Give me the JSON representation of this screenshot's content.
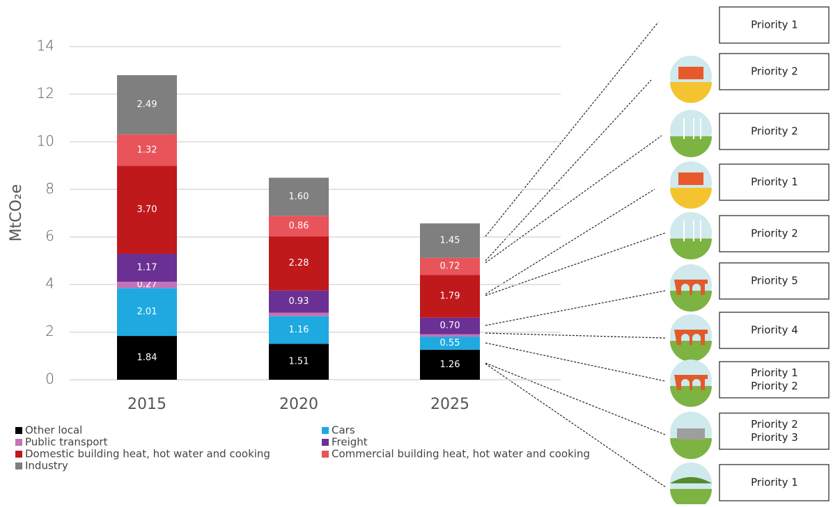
{
  "chart_data": {
    "type": "stacked_bar",
    "y_label": "MtCO₂e",
    "categories": [
      "2015",
      "2020",
      "2025"
    ],
    "ylim": [
      0,
      14
    ],
    "yticks": [
      0,
      2,
      4,
      6,
      8,
      10,
      12,
      14
    ],
    "grid": true,
    "series": [
      {
        "name": "Other local",
        "color": "#000000",
        "values": [
          1.84,
          1.51,
          1.26
        ],
        "value_labels": [
          "1.84",
          "1.51",
          "1.26"
        ]
      },
      {
        "name": "Cars",
        "color": "#1fa9e1",
        "values": [
          2.01,
          1.16,
          0.55
        ],
        "value_labels": [
          "2.01",
          "1.16",
          "0.55"
        ]
      },
      {
        "name": "Public transport",
        "color": "#c274b8",
        "values": [
          0.27,
          0.15,
          0.1
        ],
        "value_labels": [
          "0.27",
          null,
          null
        ]
      },
      {
        "name": "Freight",
        "color": "#6b3093",
        "values": [
          1.17,
          0.93,
          0.7
        ],
        "value_labels": [
          "1.17",
          "0.93",
          "0.70"
        ]
      },
      {
        "name": "Domestic building heat, hot water and cooking",
        "color": "#c0191c",
        "values": [
          3.7,
          2.28,
          1.79
        ],
        "value_labels": [
          "3.70",
          "2.28",
          "1.79"
        ]
      },
      {
        "name": "Commercial building heat, hot water and cooking",
        "color": "#e9535a",
        "values": [
          1.32,
          0.86,
          0.72
        ],
        "value_labels": [
          "1.32",
          "0.86",
          "0.72"
        ]
      },
      {
        "name": "Industry",
        "color": "#7f7f7f",
        "values": [
          2.49,
          1.6,
          1.45
        ],
        "value_labels": [
          "2.49",
          "1.60",
          "1.45"
        ]
      }
    ]
  },
  "priorities": [
    [
      "Priority 1"
    ],
    [
      "Priority 2"
    ],
    [
      "Priority 2"
    ],
    [
      "Priority 1"
    ],
    [
      "Priority 2"
    ],
    [
      "Priority 5"
    ],
    [
      "Priority 4"
    ],
    [
      "Priority 1",
      "Priority 2"
    ],
    [
      "Priority 2",
      "Priority 3"
    ],
    [
      "Priority 1"
    ]
  ]
}
